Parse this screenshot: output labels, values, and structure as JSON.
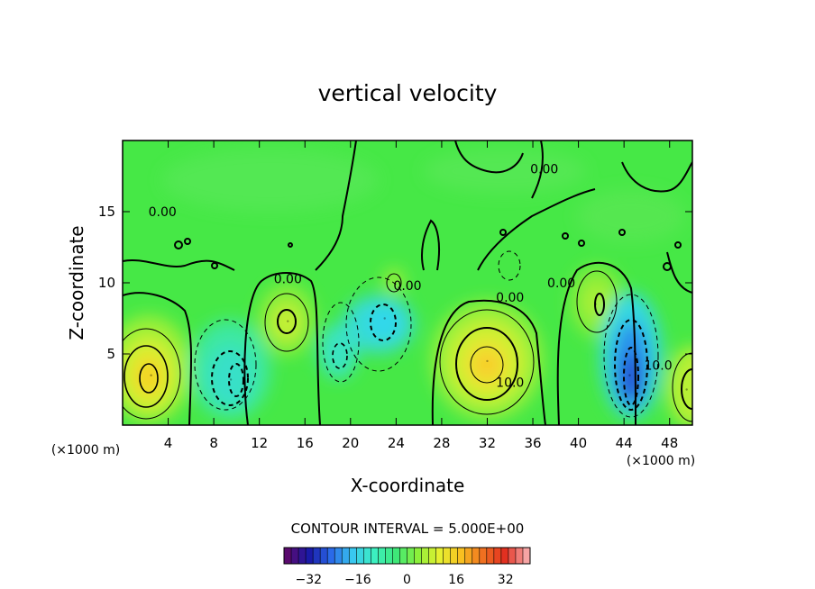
{
  "chart_data": {
    "type": "heatmap",
    "title": "vertical velocity",
    "xlabel": "X-coordinate",
    "ylabel": "Z-coordinate",
    "x_unit_left": "(×1000 m)",
    "x_unit_right": "(×1000 m)",
    "xlim": [
      0,
      50
    ],
    "ylim": [
      0,
      20
    ],
    "x_ticks": [
      4,
      8,
      12,
      16,
      20,
      24,
      28,
      32,
      36,
      40,
      44,
      48
    ],
    "y_ticks": [
      5,
      10,
      15
    ],
    "grid": false,
    "contour_interval_text": "CONTOUR INTERVAL = 5.000E+00",
    "contour_labels": [
      {
        "text": "0.00",
        "x": 3.5,
        "z": 15
      },
      {
        "text": "0.00",
        "x": 14.5,
        "z": 10.3
      },
      {
        "text": "0.00",
        "x": 25,
        "z": 9.8
      },
      {
        "text": "0.00",
        "x": 34,
        "z": 9
      },
      {
        "text": "0.00",
        "x": 38.5,
        "z": 10
      },
      {
        "text": "0.00",
        "x": 37,
        "z": 18
      },
      {
        "text": "10.0",
        "x": 34,
        "z": 3
      },
      {
        "text": "10.0",
        "x": 47,
        "z": 4.2
      }
    ],
    "extrema": [
      {
        "x": 2.5,
        "z": 3.5,
        "value": 15
      },
      {
        "x": 14.5,
        "z": 7.3,
        "value": 10
      },
      {
        "x": 32,
        "z": 4.5,
        "value": 18
      },
      {
        "x": 41.5,
        "z": 8.5,
        "value": 8
      },
      {
        "x": 9.5,
        "z": 3.2,
        "value": -13
      },
      {
        "x": 18.5,
        "z": 4.5,
        "value": -8
      },
      {
        "x": 23,
        "z": 7.5,
        "value": -12
      },
      {
        "x": 44.5,
        "z": 3.5,
        "value": -30
      },
      {
        "x": 49.5,
        "z": 2.5,
        "value": 12
      }
    ],
    "colorbar": {
      "min": -40,
      "max": 40,
      "ticks": [
        -32,
        -16,
        0,
        16,
        32
      ],
      "tick_labels": [
        "−32",
        "−16",
        "0",
        "16",
        "32"
      ],
      "colors": [
        "#5a0a6e",
        "#1a1aa8",
        "#2a6ae8",
        "#39c8f0",
        "#3cf0c0",
        "#3ee878",
        "#8cf03a",
        "#e6f030",
        "#f8c020",
        "#f07020",
        "#e23020",
        "#f6a4a4"
      ]
    }
  }
}
